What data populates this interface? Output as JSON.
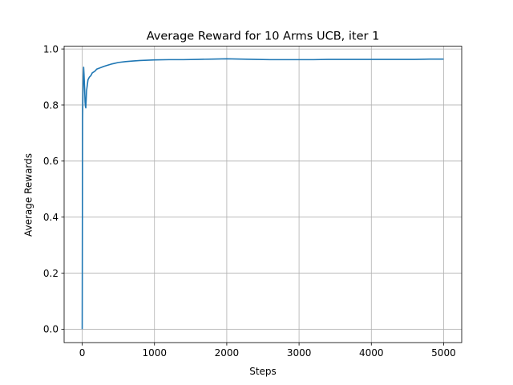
{
  "chart_data": {
    "type": "line",
    "title": "Average Reward for 10 Arms UCB, iter 1",
    "xlabel": "Steps",
    "ylabel": "Average Rewards",
    "xlim": [
      -250,
      5250
    ],
    "ylim": [
      -0.048,
      1.01
    ],
    "xticks": [
      0,
      1000,
      2000,
      3000,
      4000,
      5000
    ],
    "yticks": [
      0.0,
      0.2,
      0.4,
      0.6,
      0.8,
      1.0
    ],
    "xtick_labels": [
      "0",
      "1000",
      "2000",
      "3000",
      "4000",
      "5000"
    ],
    "ytick_labels": [
      "0.0",
      "0.2",
      "0.4",
      "0.6",
      "0.8",
      "1.0"
    ],
    "grid": true,
    "series": [
      {
        "color": "#1f77b4",
        "x": [
          0,
          5,
          10,
          15,
          20,
          25,
          30,
          35,
          40,
          45,
          50,
          55,
          60,
          70,
          80,
          90,
          100,
          120,
          140,
          160,
          180,
          200,
          250,
          300,
          350,
          400,
          450,
          500,
          600,
          700,
          800,
          900,
          1000,
          1200,
          1400,
          1600,
          1800,
          2000,
          2200,
          2400,
          2600,
          2800,
          3000,
          3200,
          3400,
          3600,
          3800,
          4000,
          4200,
          4400,
          4600,
          4800,
          5000
        ],
        "y": [
          0.0,
          0.75,
          0.83,
          0.9,
          0.935,
          0.91,
          0.88,
          0.85,
          0.81,
          0.795,
          0.79,
          0.82,
          0.85,
          0.87,
          0.89,
          0.895,
          0.9,
          0.905,
          0.915,
          0.918,
          0.922,
          0.928,
          0.933,
          0.938,
          0.942,
          0.946,
          0.949,
          0.952,
          0.955,
          0.957,
          0.959,
          0.96,
          0.961,
          0.962,
          0.962,
          0.963,
          0.964,
          0.965,
          0.964,
          0.963,
          0.962,
          0.962,
          0.962,
          0.962,
          0.963,
          0.963,
          0.963,
          0.963,
          0.963,
          0.963,
          0.963,
          0.964,
          0.964
        ]
      }
    ]
  }
}
